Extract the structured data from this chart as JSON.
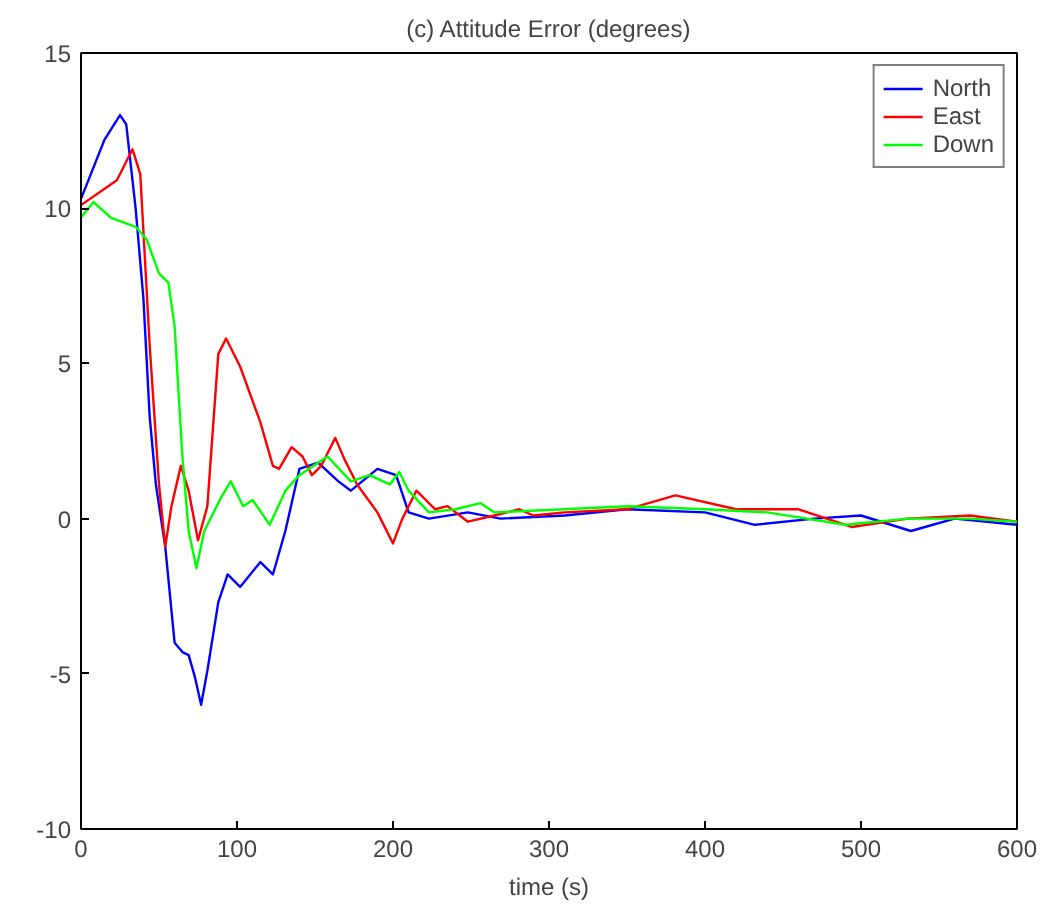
{
  "chart_data": {
    "type": "line",
    "title": "(c) Attitude Error (degrees)",
    "xlabel": "time (s)",
    "xlim": [
      0,
      600
    ],
    "ylim": [
      -10,
      15
    ],
    "xticks": [
      0,
      100,
      200,
      300,
      400,
      500,
      600
    ],
    "yticks": [
      -10,
      -5,
      0,
      5,
      10,
      15
    ],
    "grid": false,
    "legend": "top right",
    "marker": "none",
    "line_style": "solid",
    "series": [
      {
        "name": "North",
        "color": "#0000ff",
        "x": [
          0,
          15,
          25,
          29,
          35,
          40,
          44,
          48,
          54,
          60,
          65,
          69,
          73,
          77,
          81,
          88,
          94,
          102,
          115,
          123,
          131,
          140,
          152,
          165,
          173,
          190,
          202,
          210,
          223,
          248,
          269,
          310,
          350,
          400,
          432,
          470,
          500,
          532,
          560,
          600
        ],
        "values": [
          10.3,
          12.2,
          13,
          12.7,
          10,
          7.1,
          3.3,
          1.1,
          -0.9,
          -4,
          -4.3,
          -4.4,
          -5.1,
          -6,
          -4.9,
          -2.7,
          -1.8,
          -2.2,
          -1.4,
          -1.8,
          -0.4,
          1.6,
          1.8,
          1.2,
          0.9,
          1.6,
          1.4,
          0.2,
          0,
          0.2,
          0,
          0.1,
          0.3,
          0.2,
          -0.2,
          0,
          0.1,
          -0.4,
          0,
          -0.2
        ]
      },
      {
        "name": "East",
        "color": "#ff0000",
        "x": [
          0,
          23,
          33,
          38,
          44,
          50,
          54,
          58,
          64,
          69,
          75,
          81,
          88,
          93,
          102,
          115,
          123,
          127,
          135,
          142,
          148,
          154,
          163,
          169,
          177,
          190,
          200,
          206,
          215,
          227,
          235,
          248,
          265,
          281,
          290,
          310,
          350,
          381,
          420,
          460,
          494,
          530,
          570,
          600
        ],
        "values": [
          10.1,
          10.9,
          11.9,
          11.1,
          5.6,
          1.1,
          -0.9,
          0.4,
          1.7,
          0.9,
          -0.7,
          0.4,
          5.3,
          5.8,
          4.9,
          3.1,
          1.7,
          1.6,
          2.3,
          2,
          1.4,
          1.7,
          2.6,
          1.9,
          1.1,
          0.2,
          -0.8,
          0,
          0.9,
          0.3,
          0.4,
          -0.1,
          0.1,
          0.3,
          0.1,
          0.2,
          0.3,
          0.75,
          0.3,
          0.3,
          -0.27,
          0,
          0.1,
          -0.1
        ]
      },
      {
        "name": "Down",
        "color": "#00ff00",
        "x": [
          0,
          8,
          19,
          35,
          42,
          50,
          56,
          60,
          65,
          69,
          74,
          79,
          90,
          96,
          104,
          110,
          121,
          131,
          140,
          158,
          173,
          185,
          198,
          204,
          210,
          223,
          240,
          256,
          265,
          310,
          350,
          400,
          440,
          490,
          530,
          570,
          600
        ],
        "values": [
          9.7,
          10.2,
          9.7,
          9.4,
          9,
          7.9,
          7.6,
          6.2,
          2,
          -0.4,
          -1.6,
          -0.4,
          0.7,
          1.2,
          0.4,
          0.6,
          -0.2,
          0.9,
          1.4,
          2,
          1.2,
          1.4,
          1.1,
          1.5,
          0.9,
          0.2,
          0.3,
          0.5,
          0.2,
          0.3,
          0.4,
          0.3,
          0.2,
          -0.2,
          0,
          0,
          -0.1
        ]
      }
    ]
  }
}
